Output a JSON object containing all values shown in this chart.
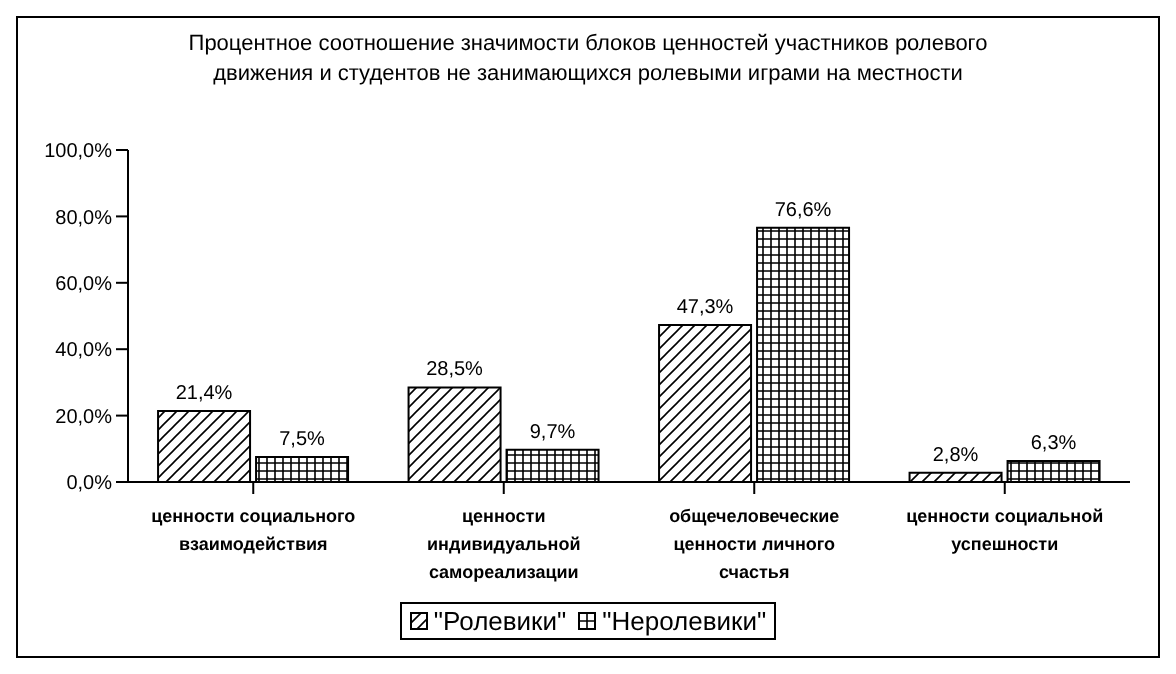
{
  "chart_data": {
    "type": "bar",
    "title": "Процентное соотношение значимости блоков ценностей участников ролевого движения и студентов не занимающихся ролевыми играми на местности",
    "categories": [
      "ценности социального взаимодействия",
      "ценности индивидуальной самореализации",
      "общечеловеческие ценности личного счастья",
      "ценности социальной успешности"
    ],
    "series": [
      {
        "name": "\"Ролевики\"",
        "color": "#000000",
        "values": [
          21.4,
          28.5,
          47.3,
          2.8
        ],
        "value_labels": [
          "21,4%",
          "28,5%",
          "47,3%",
          "2,8%"
        ]
      },
      {
        "name": "\"Неролевики\"",
        "color": "#000000",
        "values": [
          7.5,
          9.7,
          76.6,
          6.3
        ],
        "value_labels": [
          "7,5%",
          "9,7%",
          "76,6%",
          "6,3%"
        ]
      }
    ],
    "ylim": [
      0,
      100
    ],
    "yticks": [
      {
        "value": 0,
        "label": "0,0%"
      },
      {
        "value": 20,
        "label": "20,0%"
      },
      {
        "value": 40,
        "label": "40,0%"
      },
      {
        "value": 60,
        "label": "60,0%"
      },
      {
        "value": 80,
        "label": "80,0%"
      },
      {
        "value": 100,
        "label": "100,0%"
      }
    ],
    "legend": "bottom"
  }
}
